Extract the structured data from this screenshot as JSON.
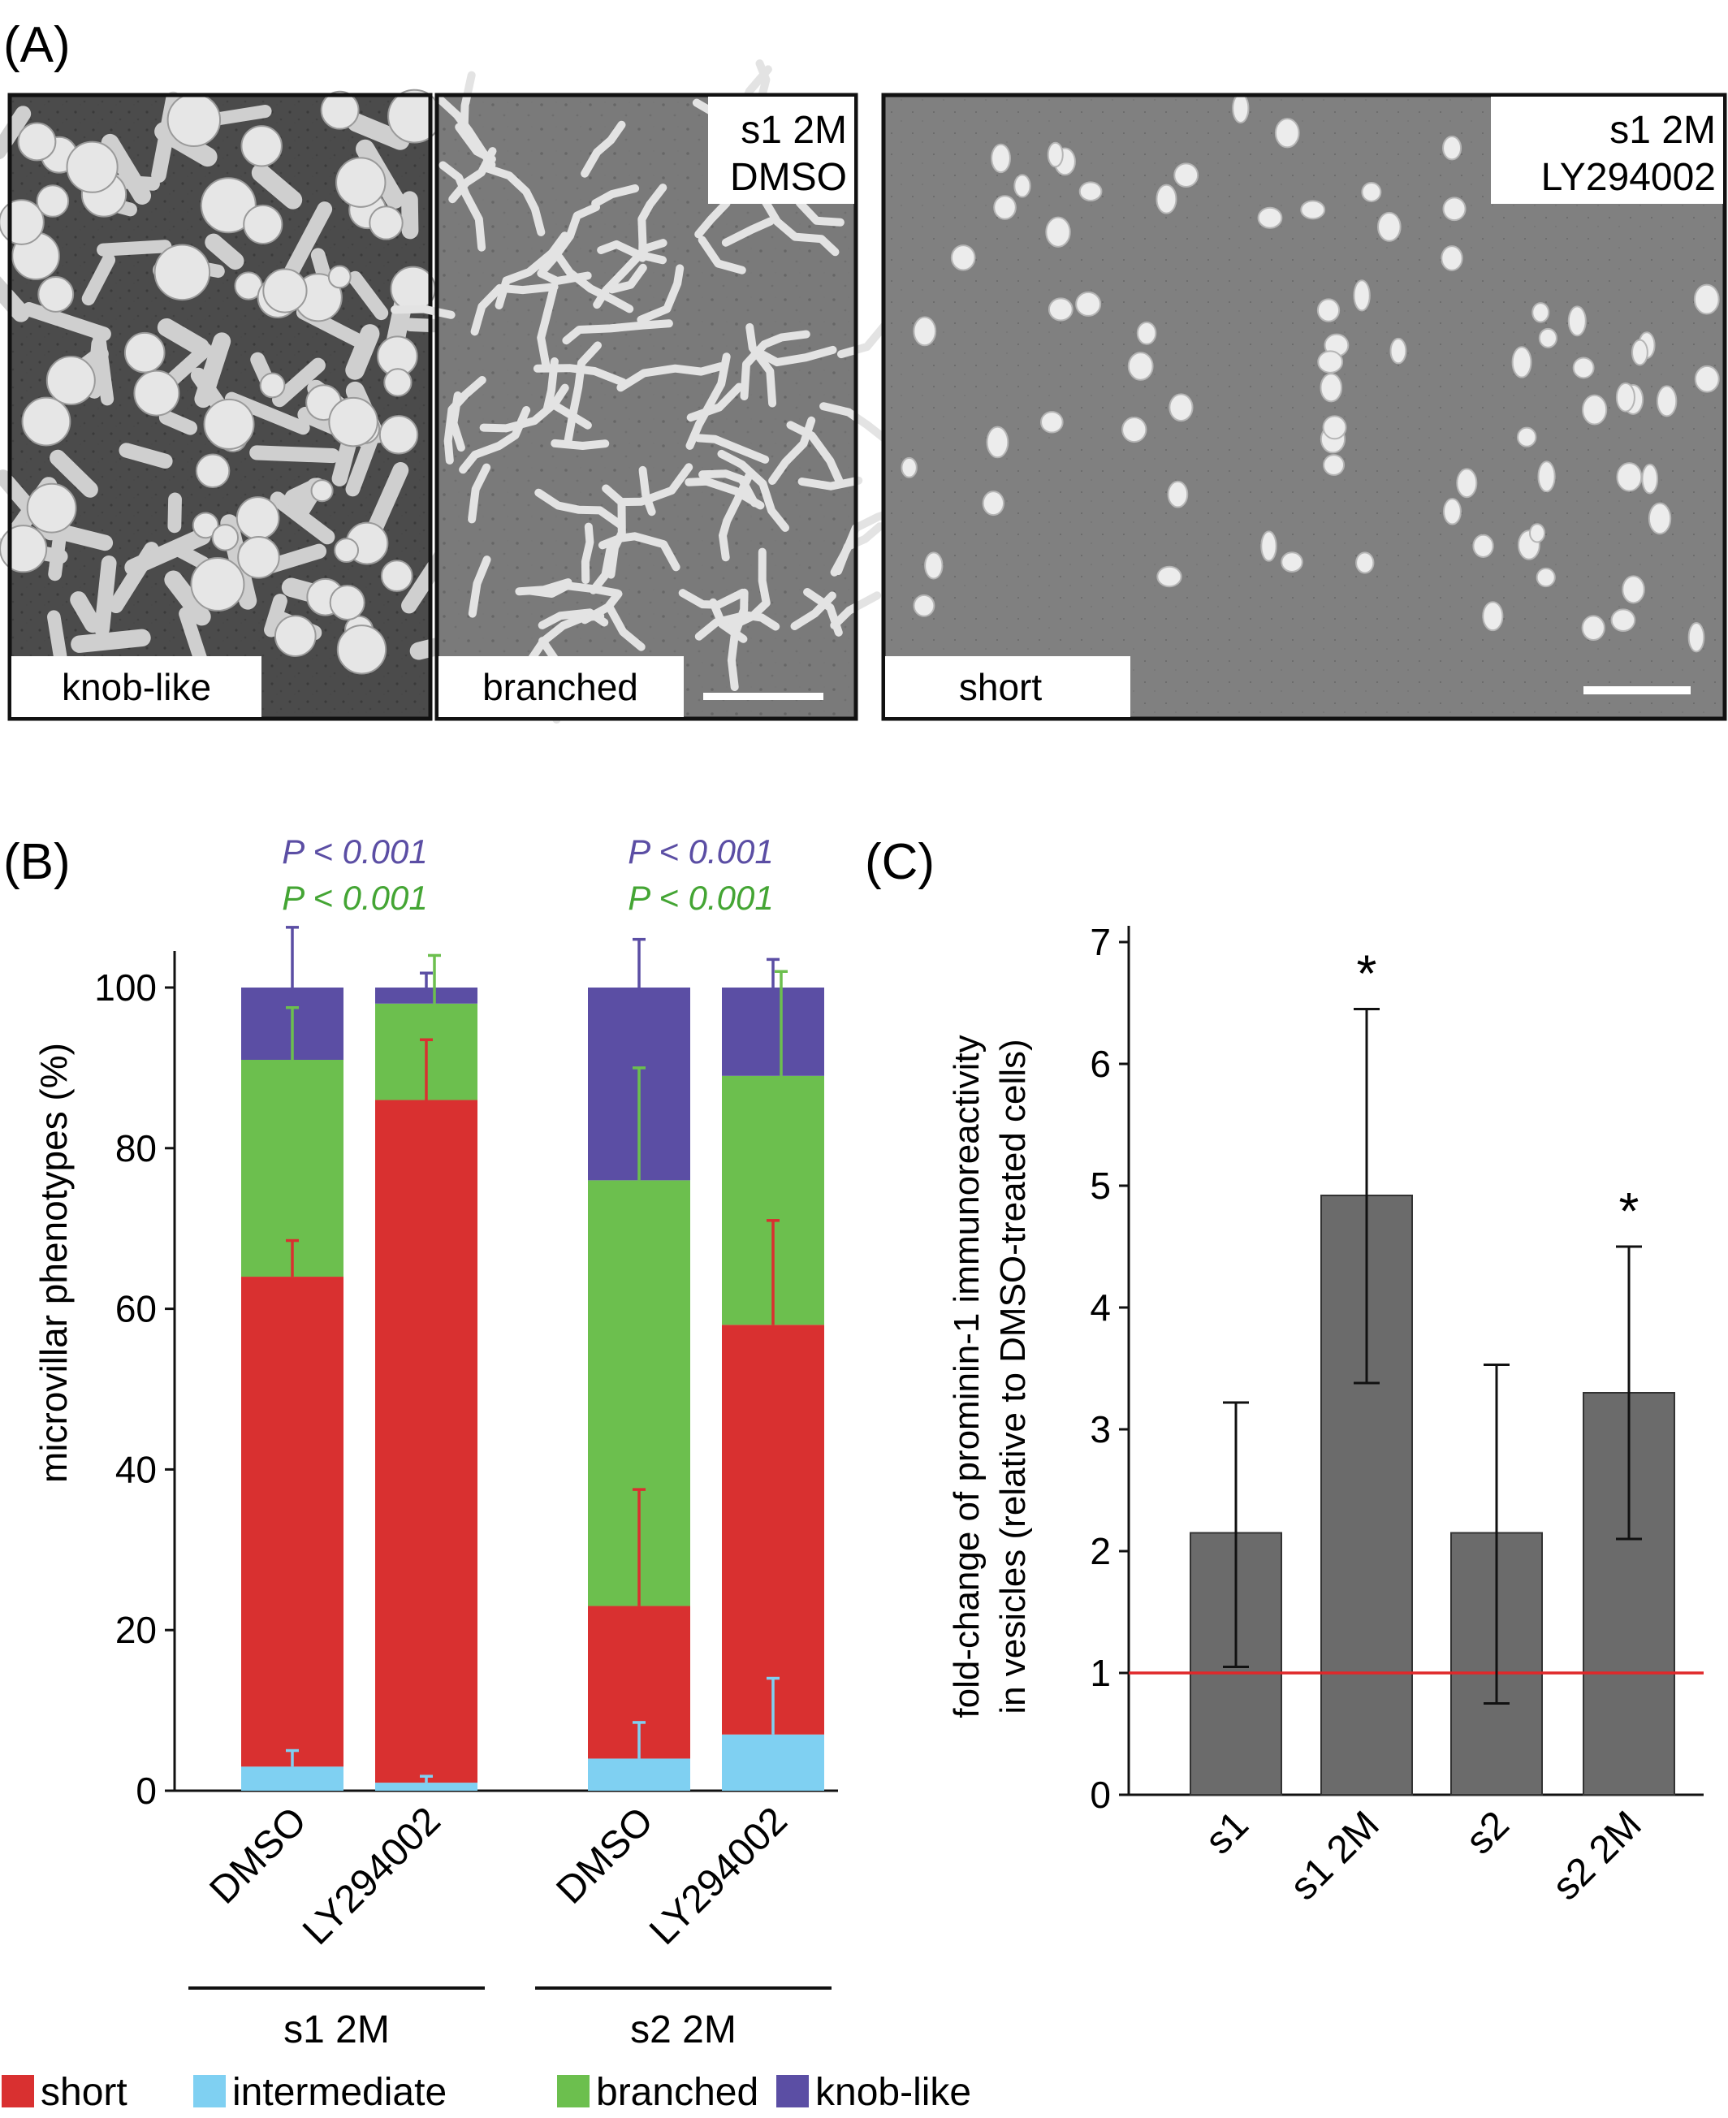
{
  "panels": {
    "A": "(A)",
    "B": "(B)",
    "C": "(C)"
  },
  "panel_a": {
    "micrographs": [
      {
        "label": "knob-like",
        "tag_lines": []
      },
      {
        "label": "branched",
        "tag_lines": [
          "s1 2M",
          "DMSO"
        ]
      },
      {
        "label": "short",
        "tag_lines": [
          "s1 2M",
          "LY294002"
        ]
      }
    ]
  },
  "colors": {
    "short": "#d93030",
    "intermediate": "#7fd0f2",
    "branched": "#6cbf4e",
    "knob_like": "#5b4ea4",
    "bar_gray": "#6b6b6b",
    "reference_line": "#e0282a"
  },
  "chart_data": [
    {
      "type": "bar",
      "stacked": true,
      "ylabel": "microvillar phenotypes (%)",
      "ylim": [
        0,
        100
      ],
      "yticks": [
        0,
        20,
        40,
        60,
        80,
        100
      ],
      "categories": [
        "DMSO",
        "LY294002",
        "DMSO",
        "LY294002"
      ],
      "groups": [
        {
          "label": "s1 2M",
          "categories": [
            0,
            1
          ]
        },
        {
          "label": "s2 2M",
          "categories": [
            2,
            3
          ]
        }
      ],
      "p_values": [
        {
          "group": "s1 2M",
          "knob_like": "P < 0.001",
          "branched": "P < 0.001"
        },
        {
          "group": "s2 2M",
          "knob_like": "P < 0.001",
          "branched": "P < 0.001"
        }
      ],
      "series": [
        {
          "name": "short",
          "color_key": "short",
          "values": [
            61,
            85,
            19,
            51
          ],
          "error": [
            4.5,
            7.5,
            14.5,
            13
          ]
        },
        {
          "name": "intermediate",
          "color_key": "intermediate",
          "values": [
            3,
            1,
            4,
            7
          ],
          "error": [
            2,
            0.8,
            4.5,
            7
          ]
        },
        {
          "name": "branched",
          "color_key": "branched",
          "values": [
            27,
            12,
            53,
            31
          ],
          "error": [
            6.5,
            6,
            14,
            13
          ]
        },
        {
          "name": "knob-like",
          "color_key": "knob_like",
          "values": [
            9,
            2,
            24,
            11
          ],
          "error": [
            7.5,
            1.8,
            6,
            3.5
          ]
        }
      ],
      "legend": {
        "position": "bottom",
        "order": [
          "short",
          "intermediate",
          "branched",
          "knob-like"
        ]
      }
    },
    {
      "type": "bar",
      "ylabel_lines": [
        "fold-change of prominin-1 immunoreactivity",
        "in vesicles  (relative to DMSO-treated cells)"
      ],
      "ylim": [
        0,
        7
      ],
      "yticks": [
        0,
        1,
        2,
        3,
        4,
        5,
        6,
        7
      ],
      "categories": [
        "s1",
        "s1 2M",
        "s2",
        "s2 2M"
      ],
      "values": [
        2.15,
        4.92,
        2.15,
        3.3
      ],
      "error_low": [
        1.05,
        3.38,
        0.75,
        2.1
      ],
      "error_high": [
        3.22,
        6.45,
        3.53,
        4.5
      ],
      "significance": [
        "",
        "*",
        "",
        "*"
      ],
      "reference_line": 1
    }
  ]
}
